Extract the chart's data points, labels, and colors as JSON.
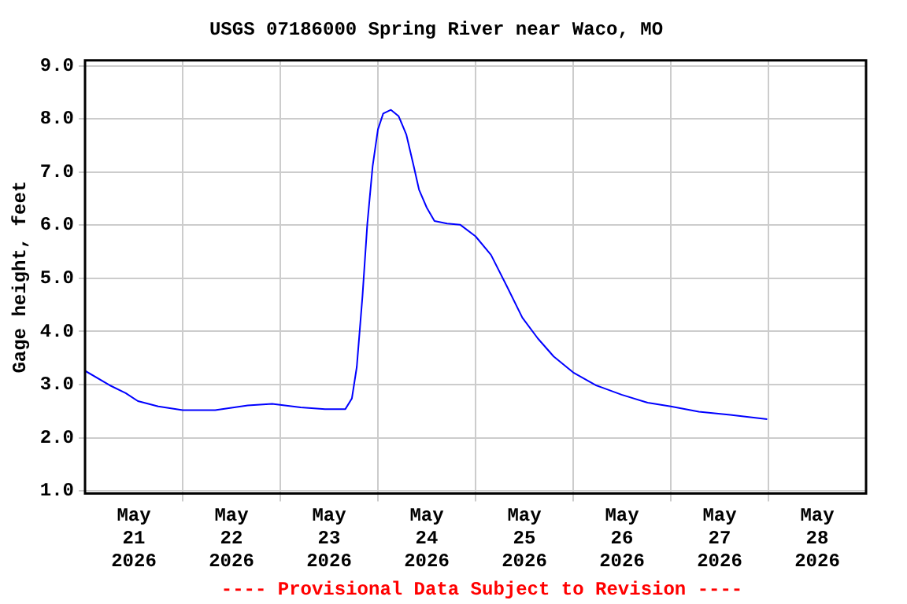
{
  "chart_data": {
    "type": "line",
    "title": "USGS 07186000 Spring River near Waco, MO",
    "ylabel": "Gage height, feet",
    "x": [
      "2026-05-21T00:00",
      "2026-05-21T06:00",
      "2026-05-21T10:00",
      "2026-05-21T13:00",
      "2026-05-21T18:00",
      "2026-05-22T00:00",
      "2026-05-22T08:00",
      "2026-05-22T16:00",
      "2026-05-22T22:00",
      "2026-05-23T05:00",
      "2026-05-23T11:00",
      "2026-05-23T16:00",
      "2026-05-23T17:36",
      "2026-05-23T18:48",
      "2026-05-23T20:12",
      "2026-05-23T21:24",
      "2026-05-23T22:42",
      "2026-05-24T00:00",
      "2026-05-24T01:18",
      "2026-05-24T03:12",
      "2026-05-24T05:06",
      "2026-05-24T07:00",
      "2026-05-24T08:48",
      "2026-05-24T10:06",
      "2026-05-24T12:00",
      "2026-05-24T13:54",
      "2026-05-24T17:00",
      "2026-05-24T20:12",
      "2026-05-25T00:00",
      "2026-05-25T03:48",
      "2026-05-25T07:42",
      "2026-05-25T11:30",
      "2026-05-25T15:18",
      "2026-05-25T19:12",
      "2026-05-26T00:00",
      "2026-05-26T05:30",
      "2026-05-26T11:54",
      "2026-05-26T18:18",
      "2026-05-27T00:00",
      "2026-05-27T06:54",
      "2026-05-27T14:36",
      "2026-05-27T23:42"
    ],
    "series": [
      {
        "color": "#0000ff",
        "values": [
          3.26,
          2.99,
          2.84,
          2.69,
          2.59,
          2.52,
          2.52,
          2.61,
          2.64,
          2.57,
          2.54,
          2.54,
          2.74,
          3.33,
          4.66,
          6.03,
          7.11,
          7.8,
          8.1,
          8.17,
          8.05,
          7.7,
          7.11,
          6.67,
          6.33,
          6.08,
          6.03,
          6.01,
          5.79,
          5.44,
          4.85,
          4.26,
          3.87,
          3.53,
          3.23,
          2.99,
          2.81,
          2.66,
          2.59,
          2.49,
          2.43,
          2.35
        ]
      }
    ],
    "xlim": [
      "2026-05-21",
      "2026-05-29"
    ],
    "xticks": [
      {
        "value": "2026-05-21T12:00",
        "label": "May 21 2026"
      },
      {
        "value": "2026-05-22T00:00",
        "label": null
      },
      {
        "value": "2026-05-22T12:00",
        "label": "May 22 2026"
      },
      {
        "value": "2026-05-23T00:00",
        "label": null
      },
      {
        "value": "2026-05-23T12:00",
        "label": "May 23 2026"
      },
      {
        "value": "2026-05-24T00:00",
        "label": null
      },
      {
        "value": "2026-05-24T12:00",
        "label": "May 24 2026"
      },
      {
        "value": "2026-05-25T00:00",
        "label": null
      },
      {
        "value": "2026-05-25T12:00",
        "label": "May 25 2026"
      },
      {
        "value": "2026-05-26T00:00",
        "label": null
      },
      {
        "value": "2026-05-26T12:00",
        "label": "May 26 2026"
      },
      {
        "value": "2026-05-27T00:00",
        "label": null
      },
      {
        "value": "2026-05-27T12:00",
        "label": "May 27 2026"
      },
      {
        "value": "2026-05-28T00:00",
        "label": null
      },
      {
        "value": "2026-05-28T12:00",
        "label": "May 28 2026"
      }
    ],
    "ylim": [
      0.95,
      9.1
    ],
    "yticks": [
      {
        "value": 1,
        "label": "1.0"
      },
      {
        "value": 2,
        "label": "2.0"
      },
      {
        "value": 3,
        "label": "3.0"
      },
      {
        "value": 4,
        "label": "4.0"
      },
      {
        "value": 5,
        "label": "5.0"
      },
      {
        "value": 6,
        "label": "6.0"
      },
      {
        "value": 7,
        "label": "7.0"
      },
      {
        "value": 8,
        "label": "8.0"
      },
      {
        "value": 9,
        "label": "9.0"
      }
    ],
    "grid": true,
    "marker": "none",
    "line_style": "solid",
    "annotations": [
      "---- Provisional Data Subject to Revision ----"
    ]
  }
}
